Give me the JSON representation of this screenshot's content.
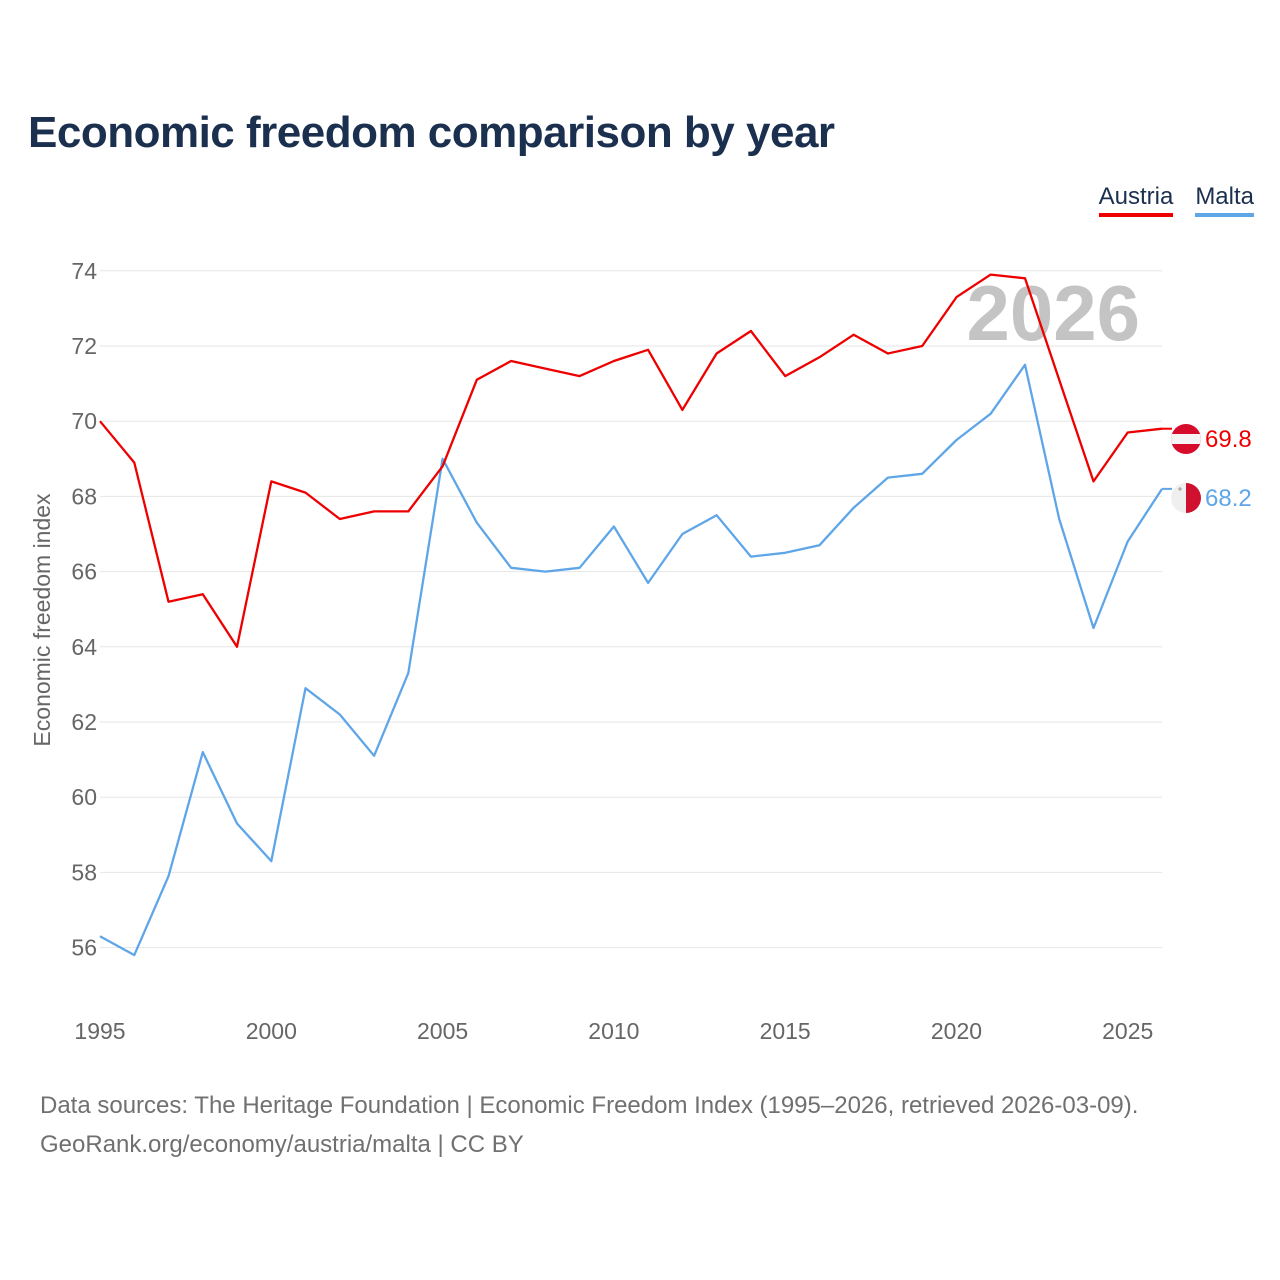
{
  "title": "Economic freedom comparison by year",
  "legend": {
    "austria": "Austria",
    "malta": "Malta"
  },
  "source": {
    "line1": "Data sources: The Heritage Foundation | Economic Freedom Index (1995–2026, retrieved 2026-03-09).",
    "line2": "GeoRank.org/economy/austria/malta | CC BY"
  },
  "chart_data": {
    "type": "line",
    "title": "Economic freedom comparison by year",
    "xlabel": "",
    "ylabel": "Economic freedom index",
    "year_watermark": "2026",
    "x": [
      1995,
      1996,
      1997,
      1998,
      1999,
      2000,
      2001,
      2002,
      2003,
      2004,
      2005,
      2006,
      2007,
      2008,
      2009,
      2010,
      2011,
      2012,
      2013,
      2014,
      2015,
      2016,
      2017,
      2018,
      2019,
      2020,
      2021,
      2022,
      2023,
      2024,
      2025,
      2026
    ],
    "xlim": [
      1995,
      2026
    ],
    "ylim": [
      54.5,
      74.5
    ],
    "xticks": [
      1995,
      2000,
      2005,
      2010,
      2015,
      2020,
      2025
    ],
    "yticks": [
      56,
      58,
      60,
      62,
      64,
      66,
      68,
      70,
      72,
      74
    ],
    "grid": true,
    "legend_position": "top-right",
    "series": [
      {
        "name": "Austria",
        "color": "#ee0000",
        "end_label": "69.8",
        "values": [
          70.0,
          68.9,
          65.2,
          65.4,
          64.0,
          68.4,
          68.1,
          67.4,
          67.6,
          67.6,
          68.8,
          71.1,
          71.6,
          71.4,
          71.2,
          71.6,
          71.9,
          70.3,
          71.8,
          72.4,
          71.2,
          71.7,
          72.3,
          71.8,
          72.0,
          73.3,
          73.9,
          73.8,
          71.1,
          68.4,
          69.7,
          69.8
        ]
      },
      {
        "name": "Malta",
        "color": "#5fa6e8",
        "end_label": "68.2",
        "values": [
          56.3,
          55.8,
          57.9,
          61.2,
          59.3,
          58.3,
          62.9,
          62.2,
          61.1,
          63.3,
          69.0,
          67.3,
          66.1,
          66.0,
          66.1,
          67.2,
          65.7,
          67.0,
          67.5,
          66.4,
          66.5,
          66.7,
          67.7,
          68.5,
          68.6,
          69.5,
          70.2,
          71.5,
          67.4,
          64.5,
          66.8,
          68.2
        ]
      }
    ]
  }
}
